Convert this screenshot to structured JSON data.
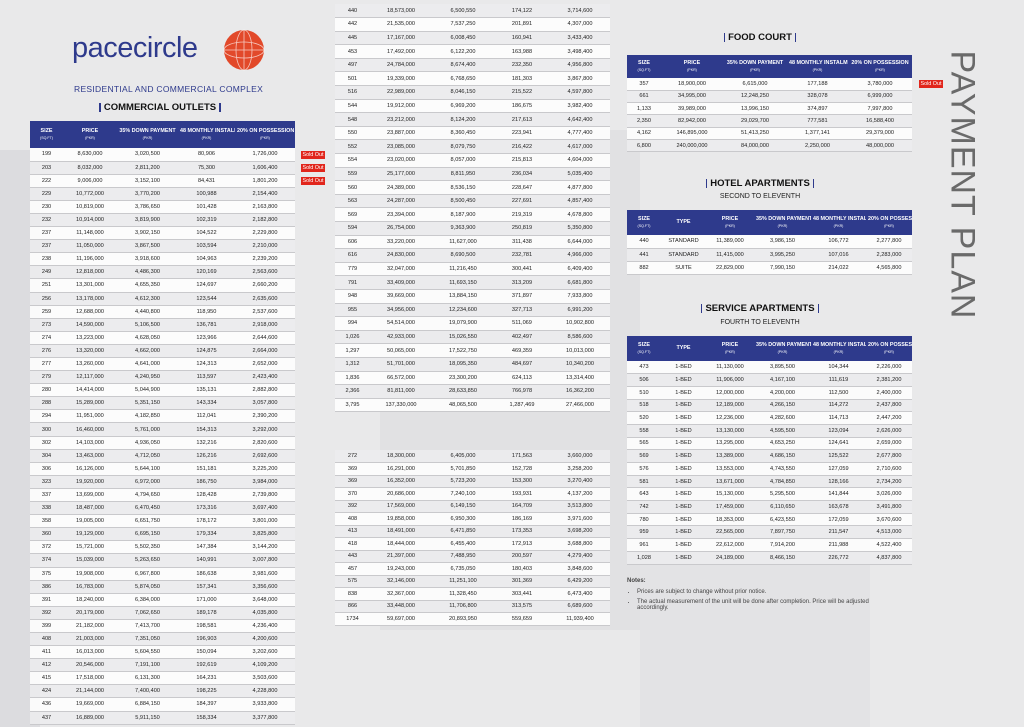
{
  "logo": {
    "name": "pacecircle",
    "tagline": "RESIDENTIAL AND COMMERCIAL COMPLEX"
  },
  "side_title": "PAYMENT PLAN",
  "commercial": {
    "title": "COMMERCIAL OUTLETS",
    "columns": [
      {
        "main": "SIZE",
        "sub": "(SQ.FT)"
      },
      {
        "main": "PRICE",
        "sub": "(PKR)"
      },
      {
        "main": "35% DOWN PAYMENT",
        "sub": "(PKR)"
      },
      {
        "main": "48 MONTHLY INSTALMENT",
        "sub": "(PKR)"
      },
      {
        "main": "20% ON POSSESSION",
        "sub": "(PKR)"
      }
    ],
    "rows": [
      [
        "199",
        "8,630,000",
        "3,020,500",
        "80,906",
        "1,726,000",
        "Sold Out"
      ],
      [
        "203",
        "8,032,000",
        "2,811,200",
        "75,300",
        "1,606,400",
        "Sold Out"
      ],
      [
        "222",
        "9,006,000",
        "3,152,100",
        "84,431",
        "1,801,200",
        "Sold Out"
      ],
      [
        "229",
        "10,772,000",
        "3,770,200",
        "100,988",
        "2,154,400"
      ],
      [
        "230",
        "10,819,000",
        "3,786,650",
        "101,428",
        "2,163,800"
      ],
      [
        "232",
        "10,914,000",
        "3,819,900",
        "102,319",
        "2,182,800"
      ],
      [
        "237",
        "11,148,000",
        "3,902,150",
        "104,522",
        "2,229,800"
      ],
      [
        "237",
        "11,050,000",
        "3,867,500",
        "103,594",
        "2,210,000"
      ],
      [
        "238",
        "11,196,000",
        "3,918,600",
        "104,963",
        "2,239,200"
      ],
      [
        "249",
        "12,818,000",
        "4,486,300",
        "120,169",
        "2,563,600"
      ],
      [
        "251",
        "13,301,000",
        "4,655,350",
        "124,697",
        "2,660,200"
      ],
      [
        "256",
        "13,178,000",
        "4,612,300",
        "123,544",
        "2,635,600"
      ],
      [
        "259",
        "12,688,000",
        "4,440,800",
        "118,950",
        "2,537,600"
      ],
      [
        "273",
        "14,590,000",
        "5,106,500",
        "136,781",
        "2,918,000"
      ],
      [
        "274",
        "13,223,000",
        "4,628,050",
        "123,966",
        "2,644,600"
      ],
      [
        "276",
        "13,320,000",
        "4,662,000",
        "124,875",
        "2,664,000"
      ],
      [
        "277",
        "13,260,000",
        "4,641,000",
        "124,313",
        "2,652,000"
      ],
      [
        "279",
        "12,117,000",
        "4,240,950",
        "113,597",
        "2,423,400"
      ],
      [
        "280",
        "14,414,000",
        "5,044,900",
        "135,131",
        "2,882,800"
      ],
      [
        "288",
        "15,289,000",
        "5,351,150",
        "143,334",
        "3,057,800"
      ],
      [
        "294",
        "11,951,000",
        "4,182,850",
        "112,041",
        "2,390,200"
      ],
      [
        "300",
        "16,460,000",
        "5,761,000",
        "154,313",
        "3,292,000"
      ],
      [
        "302",
        "14,103,000",
        "4,936,050",
        "132,216",
        "2,820,600"
      ],
      [
        "304",
        "13,463,000",
        "4,712,050",
        "126,216",
        "2,692,600"
      ],
      [
        "306",
        "16,126,000",
        "5,644,100",
        "151,181",
        "3,225,200"
      ],
      [
        "323",
        "19,920,000",
        "6,972,000",
        "186,750",
        "3,984,000"
      ],
      [
        "337",
        "13,699,000",
        "4,794,650",
        "128,428",
        "2,739,800"
      ],
      [
        "338",
        "18,487,000",
        "6,470,450",
        "173,316",
        "3,697,400"
      ],
      [
        "358",
        "19,005,000",
        "6,651,750",
        "178,172",
        "3,801,000"
      ],
      [
        "360",
        "19,129,000",
        "6,695,150",
        "179,334",
        "3,825,800"
      ],
      [
        "372",
        "15,721,000",
        "5,502,350",
        "147,384",
        "3,144,200"
      ],
      [
        "374",
        "15,039,000",
        "5,263,650",
        "140,991",
        "3,007,800"
      ],
      [
        "375",
        "19,908,000",
        "6,967,800",
        "186,638",
        "3,981,600"
      ],
      [
        "386",
        "16,783,000",
        "5,874,050",
        "157,341",
        "3,356,600"
      ],
      [
        "391",
        "18,240,000",
        "6,384,000",
        "171,000",
        "3,648,000"
      ],
      [
        "392",
        "20,179,000",
        "7,062,650",
        "189,178",
        "4,035,800"
      ],
      [
        "399",
        "21,182,000",
        "7,413,700",
        "198,581",
        "4,236,400"
      ],
      [
        "408",
        "21,003,000",
        "7,351,050",
        "196,903",
        "4,200,600"
      ],
      [
        "411",
        "16,013,000",
        "5,604,550",
        "150,094",
        "3,202,600"
      ],
      [
        "412",
        "20,546,000",
        "7,191,100",
        "192,619",
        "4,109,200"
      ],
      [
        "415",
        "17,518,000",
        "6,131,300",
        "164,231",
        "3,503,600"
      ],
      [
        "424",
        "21,144,000",
        "7,400,400",
        "198,225",
        "4,228,800"
      ],
      [
        "436",
        "19,669,000",
        "6,884,150",
        "184,397",
        "3,933,800"
      ],
      [
        "437",
        "16,889,000",
        "5,911,150",
        "158,334",
        "3,377,800"
      ]
    ]
  },
  "commercial_cont": {
    "rows": [
      [
        "440",
        "18,573,000",
        "6,500,550",
        "174,122",
        "3,714,600"
      ],
      [
        "442",
        "21,535,000",
        "7,537,250",
        "201,891",
        "4,307,000"
      ],
      [
        "445",
        "17,167,000",
        "6,008,450",
        "160,941",
        "3,433,400"
      ],
      [
        "453",
        "17,492,000",
        "6,122,200",
        "163,988",
        "3,498,400"
      ],
      [
        "497",
        "24,784,000",
        "8,674,400",
        "232,350",
        "4,956,800"
      ],
      [
        "501",
        "19,339,000",
        "6,768,650",
        "181,303",
        "3,867,800"
      ],
      [
        "516",
        "22,989,000",
        "8,046,150",
        "215,522",
        "4,597,800"
      ],
      [
        "544",
        "19,912,000",
        "6,969,200",
        "186,675",
        "3,982,400"
      ],
      [
        "548",
        "23,212,000",
        "8,124,200",
        "217,613",
        "4,642,400"
      ],
      [
        "550",
        "23,887,000",
        "8,360,450",
        "223,941",
        "4,777,400"
      ],
      [
        "552",
        "23,085,000",
        "8,079,750",
        "216,422",
        "4,617,000"
      ],
      [
        "554",
        "23,020,000",
        "8,057,000",
        "215,813",
        "4,604,000"
      ],
      [
        "559",
        "25,177,000",
        "8,811,950",
        "236,034",
        "5,035,400"
      ],
      [
        "560",
        "24,389,000",
        "8,536,150",
        "228,647",
        "4,877,800"
      ],
      [
        "563",
        "24,287,000",
        "8,500,450",
        "227,691",
        "4,857,400"
      ],
      [
        "569",
        "23,394,000",
        "8,187,900",
        "219,319",
        "4,678,800"
      ],
      [
        "594",
        "26,754,000",
        "9,363,900",
        "250,819",
        "5,350,800"
      ],
      [
        "606",
        "33,220,000",
        "11,627,000",
        "311,438",
        "6,644,000"
      ],
      [
        "616",
        "24,830,000",
        "8,690,500",
        "232,781",
        "4,966,000"
      ],
      [
        "779",
        "32,047,000",
        "11,216,450",
        "300,441",
        "6,409,400"
      ],
      [
        "791",
        "33,409,000",
        "11,693,150",
        "313,209",
        "6,681,800"
      ],
      [
        "948",
        "39,669,000",
        "13,884,150",
        "371,897",
        "7,933,800"
      ],
      [
        "955",
        "34,956,000",
        "12,234,600",
        "327,713",
        "6,991,200"
      ],
      [
        "994",
        "54,514,000",
        "19,079,900",
        "511,069",
        "10,902,800"
      ],
      [
        "1,026",
        "42,933,000",
        "15,026,550",
        "402,497",
        "8,586,600"
      ],
      [
        "1,297",
        "50,065,000",
        "17,522,750",
        "469,359",
        "10,013,000"
      ],
      [
        "1,312",
        "51,701,000",
        "18,095,350",
        "484,697",
        "10,340,200"
      ],
      [
        "1,836",
        "66,572,000",
        "23,300,200",
        "624,113",
        "13,314,400"
      ],
      [
        "2,366",
        "81,811,000",
        "28,633,850",
        "766,978",
        "16,362,200"
      ],
      [
        "3,795",
        "137,330,000",
        "48,065,500",
        "1,287,469",
        "27,466,000"
      ]
    ]
  },
  "second_block": {
    "rows": [
      [
        "272",
        "18,300,000",
        "6,405,000",
        "171,563",
        "3,660,000"
      ],
      [
        "369",
        "16,291,000",
        "5,701,850",
        "152,728",
        "3,258,200"
      ],
      [
        "369",
        "16,352,000",
        "5,723,200",
        "153,300",
        "3,270,400"
      ],
      [
        "370",
        "20,686,000",
        "7,240,100",
        "193,931",
        "4,137,200"
      ],
      [
        "392",
        "17,569,000",
        "6,149,150",
        "164,709",
        "3,513,800"
      ],
      [
        "408",
        "19,858,000",
        "6,950,300",
        "186,169",
        "3,971,600"
      ],
      [
        "413",
        "18,491,000",
        "6,471,850",
        "173,353",
        "3,698,200"
      ],
      [
        "418",
        "18,444,000",
        "6,455,400",
        "172,913",
        "3,688,800"
      ],
      [
        "443",
        "21,397,000",
        "7,488,950",
        "200,597",
        "4,279,400"
      ],
      [
        "457",
        "19,243,000",
        "6,735,050",
        "180,403",
        "3,848,600"
      ],
      [
        "575",
        "32,146,000",
        "11,251,100",
        "301,369",
        "6,429,200"
      ],
      [
        "838",
        "32,367,000",
        "11,328,450",
        "303,441",
        "6,473,400"
      ],
      [
        "866",
        "33,448,000",
        "11,706,800",
        "313,575",
        "6,689,600"
      ],
      [
        "1734",
        "59,697,000",
        "20,893,950",
        "559,659",
        "11,939,400"
      ]
    ]
  },
  "food_court": {
    "title": "FOOD COURT",
    "columns": [
      {
        "main": "SIZE",
        "sub": "(SQ.FT)"
      },
      {
        "main": "PRICE",
        "sub": "(PKR)"
      },
      {
        "main": "35% DOWN PAYMENT",
        "sub": "(PKR)"
      },
      {
        "main": "48 MONTHLY INSTALMENT",
        "sub": "(PKR)"
      },
      {
        "main": "20% ON POSSESSION",
        "sub": "(PKR)"
      }
    ],
    "rows": [
      [
        "357",
        "18,900,000",
        "6,615,000",
        "177,188",
        "3,780,000",
        "Sold Out"
      ],
      [
        "661",
        "34,995,000",
        "12,248,250",
        "328,078",
        "6,999,000"
      ],
      [
        "1,133",
        "39,989,000",
        "13,996,150",
        "374,897",
        "7,997,800"
      ],
      [
        "2,350",
        "82,942,000",
        "29,029,700",
        "777,581",
        "16,588,400"
      ],
      [
        "4,162",
        "146,895,000",
        "51,413,250",
        "1,377,141",
        "29,379,000"
      ],
      [
        "6,800",
        "240,000,000",
        "84,000,000",
        "2,250,000",
        "48,000,000"
      ]
    ]
  },
  "hotel": {
    "title": "HOTEL APARTMENTS",
    "subtitle": "SECOND TO ELEVENTH",
    "columns": [
      {
        "main": "SIZE",
        "sub": "(SQ.FT)"
      },
      {
        "main": "TYPE"
      },
      {
        "main": "PRICE",
        "sub": "(PKR)"
      },
      {
        "main": "35% DOWN PAYMENT",
        "sub": "(PKR)"
      },
      {
        "main": "48 MONTHLY INSTALMENT",
        "sub": "(PKR)"
      },
      {
        "main": "20% ON POSSESSION",
        "sub": "(PKR)"
      }
    ],
    "rows": [
      [
        "440",
        "STANDARD",
        "11,389,000",
        "3,986,150",
        "106,772",
        "2,277,800"
      ],
      [
        "441",
        "STANDARD",
        "11,415,000",
        "3,995,250",
        "107,016",
        "2,283,000"
      ],
      [
        "882",
        "SUITE",
        "22,829,000",
        "7,990,150",
        "214,022",
        "4,565,800"
      ]
    ]
  },
  "service": {
    "title": "SERVICE APARTMENTS",
    "subtitle": "FOURTH TO ELEVENTH",
    "columns": [
      {
        "main": "SIZE",
        "sub": "(SQ.FT)"
      },
      {
        "main": "TYPE"
      },
      {
        "main": "PRICE",
        "sub": "(PKR)"
      },
      {
        "main": "35% DOWN PAYMENT",
        "sub": "(PKR)"
      },
      {
        "main": "48 MONTHLY INSTALMENT",
        "sub": "(PKR)"
      },
      {
        "main": "20% ON POSSESSION",
        "sub": "(PKR)"
      }
    ],
    "rows": [
      [
        "473",
        "1-BED",
        "11,130,000",
        "3,895,500",
        "104,344",
        "2,226,000"
      ],
      [
        "506",
        "1-BED",
        "11,906,000",
        "4,167,100",
        "111,619",
        "2,381,200"
      ],
      [
        "510",
        "1-BED",
        "12,000,000",
        "4,200,000",
        "112,500",
        "2,400,000"
      ],
      [
        "518",
        "1-BED",
        "12,189,000",
        "4,266,150",
        "114,272",
        "2,437,800"
      ],
      [
        "520",
        "1-BED",
        "12,236,000",
        "4,282,600",
        "114,713",
        "2,447,200"
      ],
      [
        "558",
        "1-BED",
        "13,130,000",
        "4,595,500",
        "123,094",
        "2,626,000"
      ],
      [
        "565",
        "1-BED",
        "13,295,000",
        "4,653,250",
        "124,641",
        "2,659,000"
      ],
      [
        "569",
        "1-BED",
        "13,389,000",
        "4,686,150",
        "125,522",
        "2,677,800"
      ],
      [
        "576",
        "1-BED",
        "13,553,000",
        "4,743,550",
        "127,059",
        "2,710,600"
      ],
      [
        "581",
        "1-BED",
        "13,671,000",
        "4,784,850",
        "128,166",
        "2,734,200"
      ],
      [
        "643",
        "1-BED",
        "15,130,000",
        "5,295,500",
        "141,844",
        "3,026,000"
      ],
      [
        "742",
        "1-BED",
        "17,459,000",
        "6,110,650",
        "163,678",
        "3,491,800"
      ],
      [
        "780",
        "1-BED",
        "18,353,000",
        "6,423,550",
        "172,059",
        "3,670,600"
      ],
      [
        "959",
        "1-BED",
        "22,565,000",
        "7,897,750",
        "211,547",
        "4,513,000"
      ],
      [
        "961",
        "1-BED",
        "22,612,000",
        "7,914,200",
        "211,988",
        "4,522,400"
      ],
      [
        "1,028",
        "1-BED",
        "24,189,000",
        "8,466,150",
        "226,772",
        "4,837,800"
      ]
    ]
  },
  "notes": {
    "title": "Notes:",
    "items": [
      "Prices are subject to change without prior notice.",
      "The actual measurement of the unit will be done after completion. Price will be adjusted accordingly."
    ]
  }
}
